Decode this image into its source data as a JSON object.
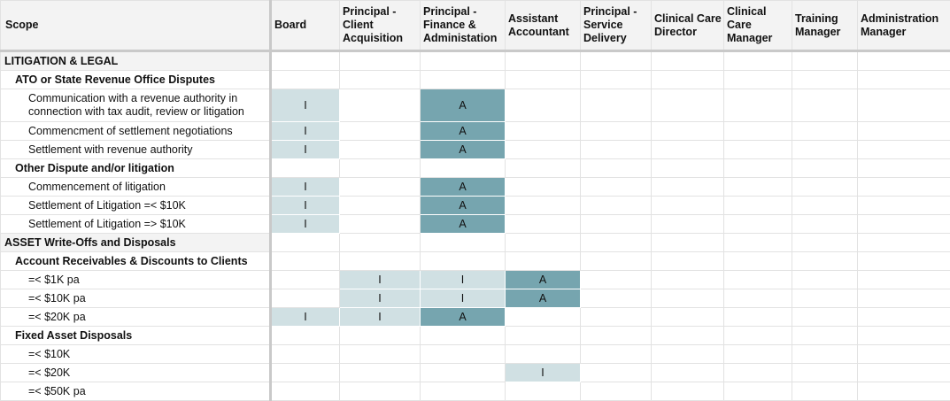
{
  "columns": [
    "Scope",
    "Board",
    "Principal - Client Acquisition",
    "Principal - Finance & Administation",
    "Assistant Accountant",
    "Principal - Service Delivery",
    "Clinical Care Director",
    "Clinical Care Manager",
    "Training Manager",
    "Administration Manager"
  ],
  "rows": [
    {
      "level": "cat",
      "label": "LITIGATION & LEGAL",
      "cells": [
        "",
        "",
        "",
        "",
        "",
        "",
        "",
        "",
        ""
      ]
    },
    {
      "level": "sub",
      "label": "ATO or State Revenue Office Disputes",
      "cells": [
        "",
        "",
        "",
        "",
        "",
        "",
        "",
        "",
        ""
      ]
    },
    {
      "level": "item",
      "tall": true,
      "label": "Communication with a revenue authority in connection with tax audit, review or litigation",
      "cells": [
        "I",
        "",
        "A",
        "",
        "",
        "",
        "",
        "",
        ""
      ]
    },
    {
      "level": "item",
      "label": "Commencment of settlement negotiations",
      "cells": [
        "I",
        "",
        "A",
        "",
        "",
        "",
        "",
        "",
        ""
      ]
    },
    {
      "level": "item",
      "label": "Settlement with revenue authority",
      "cells": [
        "I",
        "",
        "A",
        "",
        "",
        "",
        "",
        "",
        ""
      ]
    },
    {
      "level": "sub",
      "label": "Other Dispute and/or litigation",
      "cells": [
        "",
        "",
        "",
        "",
        "",
        "",
        "",
        "",
        ""
      ]
    },
    {
      "level": "item",
      "label": "Commencement of litigation",
      "cells": [
        "I",
        "",
        "A",
        "",
        "",
        "",
        "",
        "",
        ""
      ]
    },
    {
      "level": "item",
      "label": "Settlement of Litigation =< $10K",
      "cells": [
        "I",
        "",
        "A",
        "",
        "",
        "",
        "",
        "",
        ""
      ]
    },
    {
      "level": "item",
      "label": "Settlement of Litigation => $10K",
      "cells": [
        "I",
        "",
        "A",
        "",
        "",
        "",
        "",
        "",
        ""
      ]
    },
    {
      "level": "cat",
      "label": "ASSET Write-Offs and Disposals",
      "cells": [
        "",
        "",
        "",
        "",
        "",
        "",
        "",
        "",
        ""
      ]
    },
    {
      "level": "sub",
      "label": "Account Receivables & Discounts to Clients",
      "cells": [
        "",
        "",
        "",
        "",
        "",
        "",
        "",
        "",
        ""
      ]
    },
    {
      "level": "item",
      "label": "=< $1K pa",
      "cells": [
        "",
        "I",
        "I",
        "A",
        "",
        "",
        "",
        "",
        ""
      ]
    },
    {
      "level": "item",
      "label": "=< $10K pa",
      "cells": [
        "",
        "I",
        "I",
        "A",
        "",
        "",
        "",
        "",
        ""
      ]
    },
    {
      "level": "item",
      "label": "=< $20K pa",
      "cells": [
        "I",
        "I",
        "A",
        "",
        "",
        "",
        "",
        "",
        ""
      ]
    },
    {
      "level": "sub",
      "label": "Fixed Asset Disposals",
      "cells": [
        "",
        "",
        "",
        "",
        "",
        "",
        "",
        "",
        ""
      ]
    },
    {
      "level": "item",
      "label": "=< $10K",
      "cells": [
        "",
        "",
        "",
        "",
        "",
        "",
        "",
        "",
        ""
      ]
    },
    {
      "level": "item",
      "label": "=< $20K",
      "cells": [
        "",
        "",
        "",
        "I",
        "",
        "",
        "",
        "",
        ""
      ]
    },
    {
      "level": "item",
      "label": "=< $50K pa",
      "cells": [
        "",
        "",
        "",
        "",
        "",
        "",
        "",
        "",
        ""
      ]
    }
  ],
  "colors": {
    "informed": "#d0e0e3",
    "accountable": "#76a5af"
  }
}
